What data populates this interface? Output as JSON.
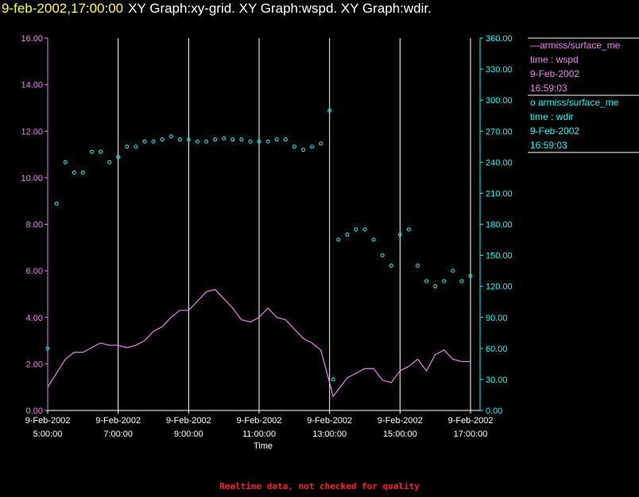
{
  "header": {
    "timestamp": "9-feb-2002,17:00:00",
    "title": "XY Graph:xy-grid.  XY Graph:wspd.  XY Graph:wdir."
  },
  "footer": {
    "note": "Realtime data, not checked for quality"
  },
  "colors": {
    "wspd": "#ee82ee",
    "wdir": "#00ffff",
    "grid": "#ffffff",
    "text": "#ffffff",
    "timestamp": "#ffff33",
    "note": "#ff2020"
  },
  "chart_data": {
    "type": "line",
    "xlabel": "Time",
    "x_ticks": [
      {
        "date": "9-Feb-2002",
        "time": "5:00:00"
      },
      {
        "date": "9-Feb-2002",
        "time": "7:00:00"
      },
      {
        "date": "9-Feb-2002",
        "time": "9:00:00"
      },
      {
        "date": "9-Feb-2002",
        "time": "11:00:00"
      },
      {
        "date": "9-Feb-2002",
        "time": "13:00:00"
      },
      {
        "date": "9-Feb-2002",
        "time": "15:00:00"
      },
      {
        "date": "9-Feb-2002",
        "time": "17:00:00"
      }
    ],
    "xlim_hours": [
      5,
      17
    ],
    "y_left": {
      "ticks": [
        "0.00",
        "2.00",
        "4.00",
        "6.00",
        "8.00",
        "10.00",
        "12.00",
        "14.00",
        "16.00"
      ],
      "ylim": [
        0,
        16
      ]
    },
    "y_right": {
      "ticks": [
        "0.00",
        "30.00",
        "60.00",
        "90.00",
        "120.00",
        "150.00",
        "180.00",
        "210.00",
        "240.00",
        "270.00",
        "300.00",
        "330.00",
        "360.00"
      ],
      "ylim": [
        0,
        360
      ]
    },
    "vertical_grid_hours": [
      7,
      9,
      11,
      13,
      15,
      17
    ],
    "series": [
      {
        "legend": [
          "—armiss/surface_me",
          "time : wspd",
          "9-Feb-2002",
          "16:59:03"
        ],
        "axis": "left",
        "style": "line",
        "x": [
          5.0,
          5.25,
          5.5,
          5.75,
          6.0,
          6.25,
          6.5,
          6.75,
          7.0,
          7.25,
          7.5,
          7.75,
          8.0,
          8.25,
          8.5,
          8.75,
          9.0,
          9.25,
          9.5,
          9.75,
          10.0,
          10.25,
          10.5,
          10.75,
          11.0,
          11.25,
          11.5,
          11.75,
          12.0,
          12.25,
          12.5,
          12.75,
          13.0,
          13.1,
          13.25,
          13.5,
          13.75,
          14.0,
          14.25,
          14.5,
          14.75,
          15.0,
          15.25,
          15.5,
          15.75,
          16.0,
          16.25,
          16.5,
          16.75,
          17.0
        ],
        "y": [
          1.0,
          1.6,
          2.2,
          2.5,
          2.5,
          2.7,
          2.9,
          2.8,
          2.8,
          2.7,
          2.8,
          3.0,
          3.4,
          3.6,
          4.0,
          4.3,
          4.3,
          4.7,
          5.1,
          5.2,
          4.8,
          4.4,
          3.9,
          3.8,
          4.0,
          4.4,
          4.0,
          3.9,
          3.5,
          3.1,
          2.9,
          2.6,
          1.2,
          0.6,
          0.9,
          1.4,
          1.6,
          1.8,
          1.8,
          1.3,
          1.2,
          1.7,
          1.9,
          2.2,
          1.7,
          2.4,
          2.6,
          2.2,
          2.1,
          2.1
        ]
      },
      {
        "legend": [
          "o  armiss/surface_me",
          "time : wdir",
          "9-Feb-2002",
          "16:59:03"
        ],
        "axis": "right",
        "style": "scatter",
        "x": [
          5.0,
          5.25,
          5.5,
          5.75,
          6.0,
          6.25,
          6.5,
          6.75,
          7.0,
          7.25,
          7.5,
          7.75,
          8.0,
          8.25,
          8.5,
          8.75,
          9.0,
          9.25,
          9.5,
          9.75,
          10.0,
          10.25,
          10.5,
          10.75,
          11.0,
          11.25,
          11.5,
          11.75,
          12.0,
          12.25,
          12.5,
          12.75,
          13.0,
          13.1,
          13.25,
          13.5,
          13.75,
          14.0,
          14.25,
          14.5,
          14.75,
          15.0,
          15.25,
          15.5,
          15.75,
          16.0,
          16.25,
          16.5,
          16.75,
          17.0
        ],
        "y": [
          60,
          200,
          240,
          230,
          230,
          250,
          250,
          240,
          245,
          255,
          255,
          260,
          260,
          262,
          265,
          262,
          262,
          260,
          260,
          262,
          263,
          262,
          262,
          260,
          260,
          260,
          262,
          262,
          255,
          252,
          255,
          258,
          290,
          30,
          165,
          170,
          175,
          175,
          165,
          150,
          140,
          170,
          175,
          140,
          125,
          120,
          125,
          135,
          125,
          130
        ]
      }
    ]
  }
}
